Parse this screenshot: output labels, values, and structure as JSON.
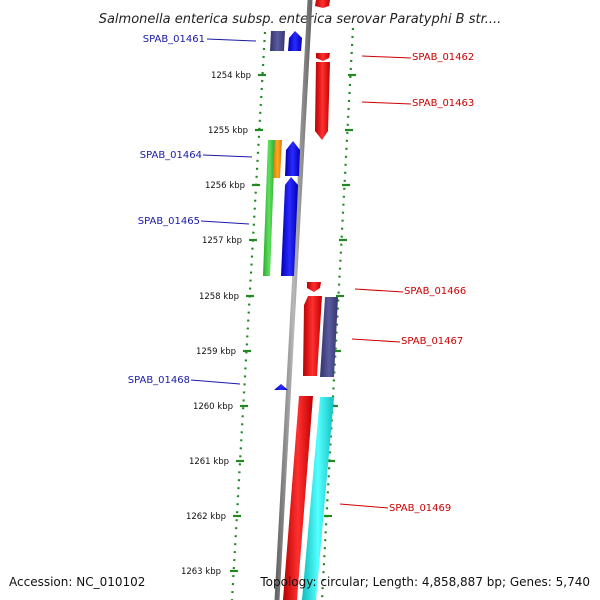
{
  "title": "Salmonella enterica subsp. enterica serovar Paratyphi B str....",
  "footer": {
    "accession": "Accession: NC_010102",
    "summary": "Topology: circular; Length: 4,858,887 bp; Genes: 5,740"
  },
  "axis_ticks": [
    "1254 kbp",
    "1255 kbp",
    "1256 kbp",
    "1257 kbp",
    "1258 kbp",
    "1259 kbp",
    "1260 kbp",
    "1261 kbp",
    "1262 kbp",
    "1263 kbp"
  ],
  "gene_labels": {
    "left": [
      "SPAB_01461",
      "SPAB_01464",
      "SPAB_01465",
      "SPAB_01468"
    ],
    "right": [
      "SPAB_01462",
      "SPAB_01463",
      "SPAB_01466",
      "SPAB_01467",
      "SPAB_01469"
    ]
  },
  "colors": {
    "left_label": "#1a1aa8",
    "right_label": "#cc0000",
    "red_gene": "#ee1111",
    "blue_gene": "#1a1aee",
    "slate_gene": "#4a4a8a",
    "green_gene": "#44cc44",
    "orange_gene": "#ff9900",
    "cyan_gene": "#22dddd",
    "backbone": "#888888",
    "dots": "#228822"
  }
}
